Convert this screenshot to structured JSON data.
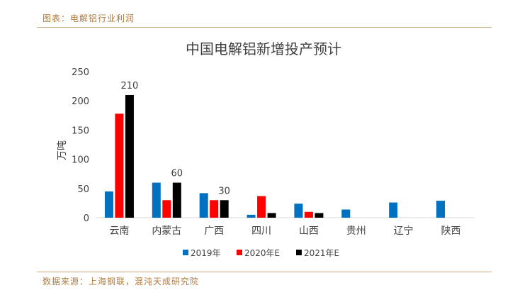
{
  "header": {
    "caption": "图表：电解铝行业利润"
  },
  "footer": {
    "source": "数据来源：上海钢联，混沌天成研究院"
  },
  "chart_data": {
    "type": "bar",
    "title": "中国电解铝新增投产预计",
    "ylabel": "万吨",
    "xlabel": "",
    "ylim": [
      0,
      250
    ],
    "yticks": [
      0,
      50,
      100,
      150,
      200,
      250
    ],
    "grid": false,
    "legend": "bottom",
    "categories": [
      "云南",
      "内蒙古",
      "广西",
      "四川",
      "山西",
      "贵州",
      "辽宁",
      "陕西"
    ],
    "series": [
      {
        "name": "2019年",
        "color": "#0070c0",
        "values": [
          45,
          60,
          42,
          5,
          24,
          14,
          26,
          29
        ]
      },
      {
        "name": "2020年E",
        "color": "#ff0000",
        "values": [
          178,
          30,
          30,
          37,
          10,
          null,
          null,
          null
        ]
      },
      {
        "name": "2021年E",
        "color": "#000000",
        "values": [
          210,
          60,
          30,
          8,
          8,
          null,
          null,
          null
        ]
      }
    ],
    "data_labels": [
      {
        "series": 2,
        "category": 0,
        "text": "210"
      },
      {
        "series": 2,
        "category": 1,
        "text": "60"
      },
      {
        "series": 2,
        "category": 2,
        "text": "30"
      }
    ]
  }
}
